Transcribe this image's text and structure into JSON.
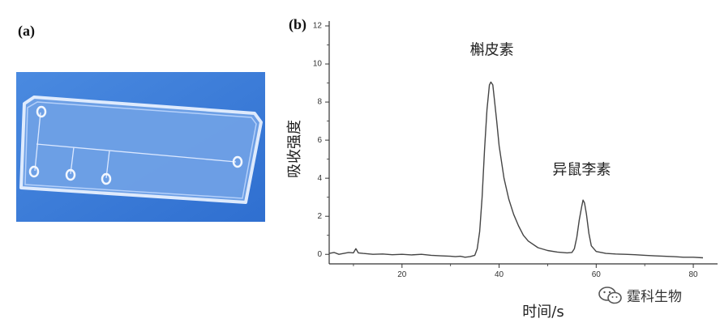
{
  "panel_labels": {
    "a": "(a)",
    "b": "(b)"
  },
  "watermark": {
    "text": "霆科生物",
    "icon": "wechat-icon"
  },
  "photo": {
    "subject": "microfluidic-chip",
    "background": "#3f7fd8"
  },
  "chart_data": {
    "type": "line",
    "xlabel": "时间/s",
    "ylabel": "吸收强度",
    "xlim": [
      5,
      85
    ],
    "ylim": [
      -0.5,
      12
    ],
    "xticks": [
      20,
      40,
      60,
      80
    ],
    "xtick_labels": [
      "20",
      "40",
      "60",
      "80"
    ],
    "yticks": [
      0,
      2,
      4,
      6,
      8,
      10,
      12
    ],
    "grid": false,
    "series": [
      {
        "color": "#444444",
        "x": [
          5,
          6,
          7,
          8,
          9,
          10,
          10.5,
          11,
          12,
          14,
          16,
          18,
          20,
          22,
          24,
          26,
          28,
          30,
          31,
          32,
          33,
          34,
          35,
          35.5,
          36,
          36.5,
          37,
          37.5,
          38,
          38.3,
          38.7,
          39,
          39.5,
          40,
          41,
          42,
          43,
          44,
          45,
          46,
          48,
          50,
          52,
          54,
          55,
          55.5,
          56,
          56.5,
          57,
          57.3,
          57.6,
          58,
          58.5,
          59,
          60,
          62,
          64,
          66,
          68,
          70,
          72,
          74,
          76,
          78,
          80,
          82
        ],
        "y": [
          0.05,
          0.1,
          0.0,
          0.05,
          0.1,
          0.08,
          0.3,
          0.08,
          0.05,
          0.0,
          0.02,
          -0.02,
          0.0,
          -0.03,
          0.0,
          -0.05,
          -0.08,
          -0.1,
          -0.12,
          -0.1,
          -0.15,
          -0.12,
          -0.05,
          0.3,
          1.2,
          3.0,
          5.5,
          7.6,
          8.9,
          9.05,
          8.9,
          8.2,
          7.0,
          5.7,
          4.0,
          2.9,
          2.1,
          1.5,
          1.0,
          0.7,
          0.35,
          0.2,
          0.12,
          0.08,
          0.1,
          0.3,
          0.9,
          1.8,
          2.5,
          2.85,
          2.7,
          2.1,
          1.1,
          0.45,
          0.15,
          0.05,
          0.02,
          0.0,
          -0.02,
          -0.05,
          -0.08,
          -0.1,
          -0.12,
          -0.15,
          -0.15,
          -0.18
        ]
      }
    ],
    "annotations": [
      {
        "text": "槲皮素",
        "x": 38.5,
        "y": 10.5
      },
      {
        "text": "异鼠李素",
        "x": 57,
        "y": 4.2
      }
    ]
  }
}
